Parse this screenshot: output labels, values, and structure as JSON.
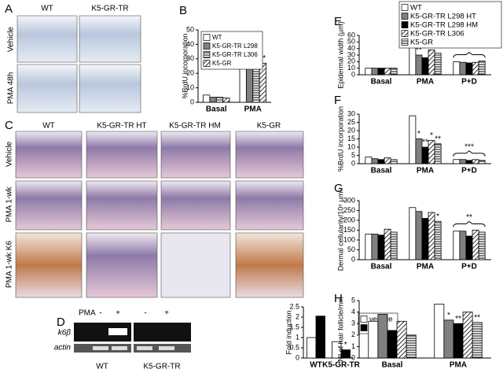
{
  "panels": {
    "A": {
      "letter": "A",
      "columns": [
        "WT",
        "K5-GR-TR"
      ],
      "rows": [
        "Vehicle",
        "PMA 48h"
      ]
    },
    "C": {
      "letter": "C",
      "columns": [
        "WT",
        "K5-GR-TR HT",
        "K5-GR-TR HM",
        "K5-GR"
      ],
      "rows": [
        "Vehicle",
        "PMA 1-wk",
        "PMA 1-wk K6"
      ]
    },
    "D": {
      "letter": "D",
      "treatment": "PMA",
      "lanes": [
        "-",
        "+",
        "-",
        "+"
      ],
      "bands": [
        "k6β",
        "actin"
      ],
      "groups": [
        "WT",
        "K5-GR-TR"
      ]
    }
  },
  "chart_data": [
    {
      "type": "bar",
      "label": "B",
      "y_label": "%BrdU incorporation",
      "categories": [
        "Basal",
        "PMA"
      ],
      "series": [
        {
          "name": "WT",
          "color": "#ffffff",
          "values": [
            5,
            47
          ],
          "significance": [
            null,
            null
          ]
        },
        {
          "name": "K5-GR-TR L298",
          "color": "#808080",
          "values": [
            3.5,
            31
          ],
          "significance": [
            null,
            "**"
          ]
        },
        {
          "name": "K5-GR-TR L306",
          "color": "#000000",
          "pattern": "horizontal",
          "values": [
            3.5,
            32
          ],
          "significance": [
            null,
            "*"
          ]
        },
        {
          "name": "K5-GR",
          "color": "#000000",
          "pattern": "diagonal",
          "values": [
            3,
            27
          ],
          "significance": [
            null,
            "**"
          ]
        }
      ],
      "ylim": [
        0,
        50
      ],
      "yticks": [
        0,
        10,
        20,
        30,
        40,
        50
      ],
      "legend": "upper-left"
    },
    {
      "type": "bar",
      "y_label": "Fold induction",
      "categories": [
        "WT",
        "K5-GR-TR"
      ],
      "series": [
        {
          "name": "vehicle",
          "color": "#ffffff",
          "values": [
            1,
            0.8
          ],
          "significance": [
            null,
            null
          ]
        },
        {
          "name": "1 wk",
          "color": "#000000",
          "values": [
            2.05,
            0.4
          ],
          "significance": [
            null,
            "*"
          ]
        }
      ],
      "ylim": [
        0,
        2.5
      ],
      "yticks": [
        0,
        0.5,
        1,
        1.5,
        2,
        2.5
      ],
      "legend": "upper-right"
    },
    {
      "type": "bar",
      "label": "E",
      "y_label": "Epidermal width (µm)",
      "categories": [
        "Basal",
        "PMA",
        "P+D"
      ],
      "series": [
        {
          "name": "WT",
          "color": "#ffffff",
          "values": [
            10,
            52,
            20
          ],
          "significance": [
            null,
            null,
            null
          ]
        },
        {
          "name": "K5-GR-TR L298 HT",
          "color": "#808080",
          "values": [
            10,
            30,
            19
          ],
          "significance": [
            null,
            "**",
            null
          ]
        },
        {
          "name": "K5-GR-TR L298 HM",
          "color": "#000000",
          "values": [
            10,
            26,
            18
          ],
          "significance": [
            null,
            null,
            null
          ]
        },
        {
          "name": "K5-GR-TR L306",
          "color": "#000000",
          "pattern": "diagonal",
          "values": [
            10,
            38,
            19
          ],
          "significance": [
            null,
            "**",
            null
          ]
        },
        {
          "name": "K5-GR",
          "color": "#000000",
          "pattern": "horizontal",
          "values": [
            10,
            33,
            21
          ],
          "significance": [
            null,
            "**",
            null
          ]
        }
      ],
      "group_significance": [
        null,
        null,
        "***"
      ],
      "ylim": [
        0,
        60
      ],
      "yticks": [
        0,
        10,
        20,
        30,
        40,
        50,
        60
      ],
      "legend": "top-right"
    },
    {
      "type": "bar",
      "label": "F",
      "y_label": "%BrdU incorporation",
      "categories": [
        "Basal",
        "PMA",
        "P+D"
      ],
      "series": [
        {
          "color": "#ffffff",
          "values": [
            4,
            29,
            2.5
          ],
          "significance": [
            null,
            null,
            null
          ]
        },
        {
          "color": "#808080",
          "values": [
            3,
            15,
            2.5
          ],
          "significance": [
            null,
            "*",
            null
          ]
        },
        {
          "color": "#000000",
          "values": [
            2.5,
            10,
            2
          ],
          "significance": [
            null,
            "**",
            null
          ]
        },
        {
          "color": "#000000",
          "pattern": "diagonal",
          "values": [
            3.5,
            14,
            2.5
          ],
          "significance": [
            null,
            "*",
            null
          ]
        },
        {
          "color": "#000000",
          "pattern": "horizontal",
          "values": [
            2.5,
            12,
            2
          ],
          "significance": [
            null,
            "**",
            null
          ]
        }
      ],
      "group_significance": [
        null,
        null,
        "***"
      ],
      "ylim": [
        0,
        30
      ],
      "yticks": [
        0,
        5,
        10,
        15,
        20,
        25,
        30
      ]
    },
    {
      "type": "bar",
      "label": "G",
      "y_label": "Dermal cellularity/10⁵ µm²",
      "categories": [
        "Basal",
        "PMA",
        "P+D"
      ],
      "series": [
        {
          "color": "#ffffff",
          "values": [
            130,
            265,
            145
          ],
          "significance": [
            null,
            null,
            null
          ]
        },
        {
          "color": "#808080",
          "values": [
            130,
            245,
            145
          ],
          "significance": [
            null,
            null,
            null
          ]
        },
        {
          "color": "#000000",
          "values": [
            125,
            210,
            120
          ],
          "significance": [
            null,
            null,
            null
          ]
        },
        {
          "color": "#000000",
          "pattern": "diagonal",
          "values": [
            155,
            240,
            150
          ],
          "significance": [
            null,
            null,
            null
          ]
        },
        {
          "color": "#000000",
          "pattern": "horizontal",
          "values": [
            140,
            195,
            140
          ],
          "significance": [
            null,
            "*",
            null
          ]
        }
      ],
      "group_significance": [
        null,
        null,
        "**"
      ],
      "ylim": [
        0,
        300
      ],
      "yticks": [
        0,
        50,
        100,
        150,
        200,
        250,
        300
      ]
    },
    {
      "type": "bar",
      "label": "H",
      "y_label": "Nº of hair follicle/mm",
      "categories": [
        "Basal",
        "PMA"
      ],
      "series": [
        {
          "color": "#ffffff",
          "values": [
            3.2,
            4.7
          ],
          "significance": [
            null,
            null
          ]
        },
        {
          "color": "#808080",
          "values": [
            3.8,
            3.3
          ],
          "significance": [
            null,
            "*"
          ]
        },
        {
          "color": "#000000",
          "values": [
            2.4,
            3.0
          ],
          "significance": [
            null,
            "**"
          ]
        },
        {
          "color": "#000000",
          "pattern": "diagonal",
          "values": [
            3.2,
            4.0
          ],
          "significance": [
            null,
            null
          ]
        },
        {
          "color": "#000000",
          "pattern": "horizontal",
          "values": [
            2.0,
            3.1
          ],
          "significance": [
            null,
            "**"
          ]
        }
      ],
      "ylim": [
        0,
        5
      ],
      "yticks": [
        0,
        1,
        2,
        3,
        4,
        5
      ]
    }
  ]
}
